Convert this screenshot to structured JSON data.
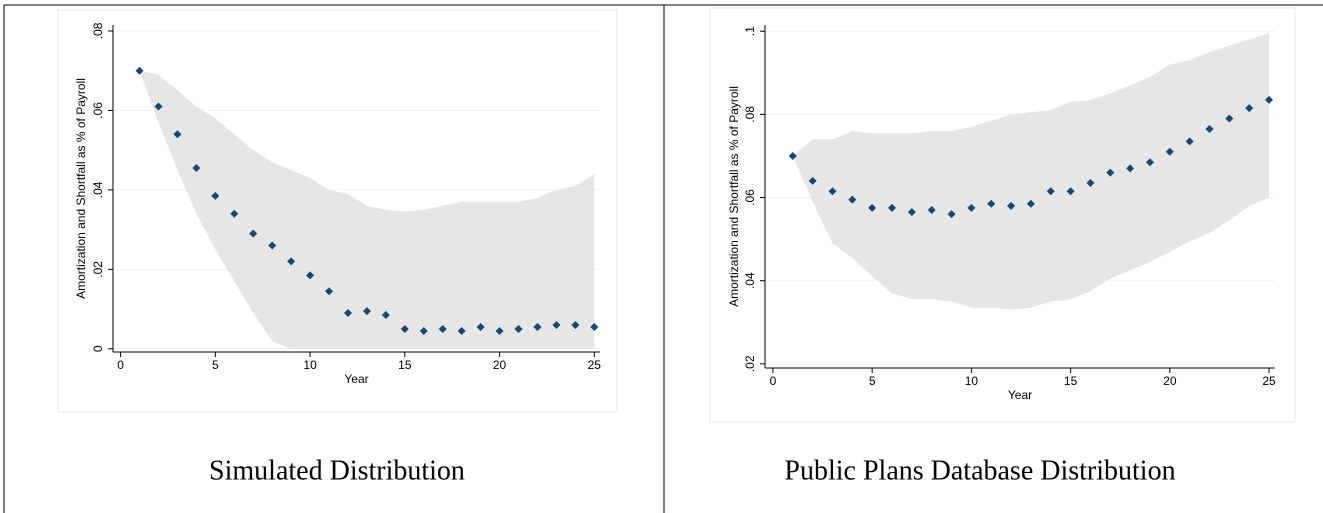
{
  "chart_data": [
    {
      "type": "scatter",
      "caption": "Simulated Distribution",
      "x_label": "Year",
      "y_label": "Amortization and Shortfall as % of Payroll",
      "x": [
        1,
        2,
        3,
        4,
        5,
        6,
        7,
        8,
        9,
        10,
        11,
        12,
        13,
        14,
        15,
        16,
        17,
        18,
        19,
        20,
        21,
        22,
        23,
        24,
        25
      ],
      "series": [
        {
          "color": "#1a476f",
          "values": [
            0.07,
            0.061,
            0.054,
            0.0455,
            0.0385,
            0.034,
            0.029,
            0.026,
            0.022,
            0.0185,
            0.0145,
            0.009,
            0.0095,
            0.0085,
            0.005,
            0.0045,
            0.005,
            0.0045,
            0.0055,
            0.0045,
            0.005,
            0.0055,
            0.006,
            0.006,
            0.0055
          ]
        }
      ],
      "band_upper": [
        0.07,
        0.069,
        0.065,
        0.061,
        0.058,
        0.054,
        0.05,
        0.047,
        0.045,
        0.043,
        0.04,
        0.039,
        0.036,
        0.035,
        0.0345,
        0.035,
        0.036,
        0.037,
        0.037,
        0.037,
        0.037,
        0.038,
        0.04,
        0.041,
        0.044
      ],
      "band_lower": [
        0.07,
        0.057,
        0.045,
        0.034,
        0.025,
        0.017,
        0.009,
        0.002,
        0,
        0,
        0,
        0,
        0,
        0,
        0,
        0,
        0,
        0,
        0,
        0,
        0,
        0,
        0,
        0,
        0
      ],
      "band_color": "#e6e6e6",
      "xlim": [
        -0.4,
        25.3
      ],
      "xticks": [
        0,
        5,
        10,
        15,
        20,
        25
      ],
      "ylim": [
        -0.0008,
        0.0815
      ],
      "yticks": [
        0,
        {
          "value": 0.02,
          "label": ".02"
        },
        {
          "value": 0.04,
          "label": ".04"
        },
        {
          "value": 0.06,
          "label": ".06"
        },
        {
          "value": 0.08,
          "label": ".08"
        }
      ],
      "grid": true
    },
    {
      "type": "scatter",
      "caption": "Public Plans Database Distribution",
      "x_label": "Year",
      "y_label": "Amortization and Shortfall as % of Payroll",
      "x": [
        1,
        2,
        3,
        4,
        5,
        6,
        7,
        8,
        9,
        10,
        11,
        12,
        13,
        14,
        15,
        16,
        17,
        18,
        19,
        20,
        21,
        22,
        23,
        24,
        25
      ],
      "series": [
        {
          "color": "#1a476f",
          "values": [
            0.07,
            0.064,
            0.0615,
            0.0595,
            0.0575,
            0.0575,
            0.0565,
            0.057,
            0.056,
            0.0575,
            0.0585,
            0.058,
            0.0585,
            0.0615,
            0.0615,
            0.0635,
            0.066,
            0.067,
            0.0685,
            0.071,
            0.0735,
            0.0765,
            0.079,
            0.0815,
            0.0835
          ]
        }
      ],
      "band_upper": [
        0.07,
        0.074,
        0.074,
        0.076,
        0.0755,
        0.0755,
        0.0755,
        0.076,
        0.076,
        0.077,
        0.0785,
        0.08,
        0.0805,
        0.081,
        0.083,
        0.0835,
        0.085,
        0.087,
        0.089,
        0.092,
        0.093,
        0.095,
        0.0965,
        0.098,
        0.0995
      ],
      "band_lower": [
        0.07,
        0.059,
        0.049,
        0.0455,
        0.041,
        0.037,
        0.0355,
        0.0355,
        0.035,
        0.0335,
        0.0335,
        0.033,
        0.0335,
        0.035,
        0.0355,
        0.0375,
        0.0405,
        0.0425,
        0.0445,
        0.047,
        0.0495,
        0.0515,
        0.0545,
        0.058,
        0.06
      ],
      "band_color": "#e6e6e6",
      "xlim": [
        -0.4,
        25.3
      ],
      "xticks": [
        0,
        5,
        10,
        15,
        20,
        25
      ],
      "ylim": [
        0.019,
        0.1015
      ],
      "yticks": [
        {
          "value": 0.02,
          "label": ".02"
        },
        {
          "value": 0.04,
          "label": ".04"
        },
        {
          "value": 0.06,
          "label": ".06"
        },
        {
          "value": 0.08,
          "label": ".08"
        },
        {
          "value": 0.1,
          "label": ".1"
        }
      ],
      "grid": true
    }
  ]
}
